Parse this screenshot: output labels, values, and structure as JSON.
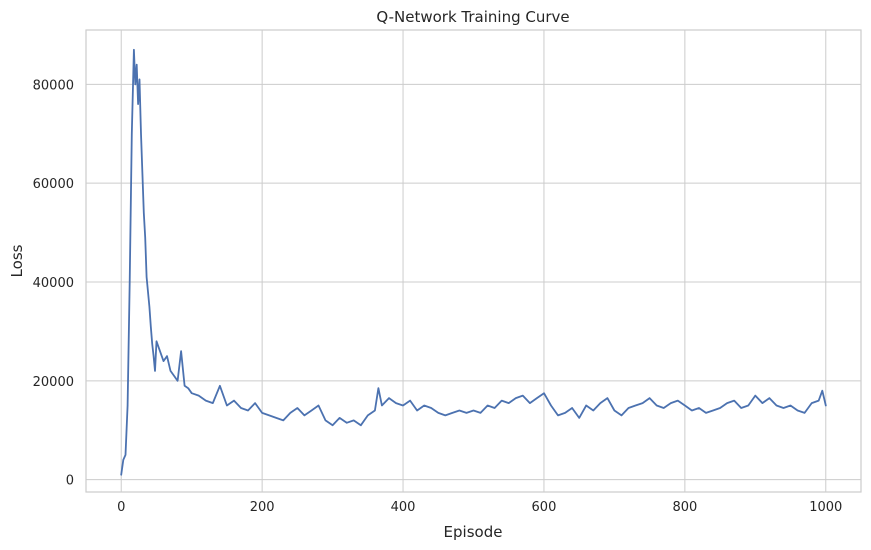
{
  "chart_data": {
    "type": "line",
    "title": "Q-Network Training Curve",
    "xlabel": "Episode",
    "ylabel": "Loss",
    "xlim": [
      -50,
      1050
    ],
    "ylim": [
      -2500,
      91000
    ],
    "xticks": [
      0,
      200,
      400,
      600,
      800,
      1000
    ],
    "yticks": [
      0,
      20000,
      40000,
      60000,
      80000
    ],
    "grid": true,
    "color": "#4c72b0",
    "series": [
      {
        "x": [
          0,
          3,
          6,
          9,
          12,
          15,
          18,
          20,
          22,
          24,
          26,
          28,
          30,
          32,
          34,
          36,
          38,
          40,
          42,
          44,
          46,
          48,
          50,
          55,
          60,
          65,
          70,
          75,
          80,
          85,
          90,
          95,
          100,
          110,
          120,
          130,
          140,
          150,
          160,
          170,
          180,
          190,
          200,
          210,
          220,
          230,
          240,
          250,
          260,
          270,
          280,
          290,
          300,
          310,
          320,
          330,
          340,
          350,
          360,
          365,
          370,
          380,
          390,
          400,
          410,
          420,
          430,
          440,
          450,
          460,
          470,
          480,
          490,
          500,
          510,
          520,
          530,
          540,
          550,
          560,
          570,
          580,
          590,
          600,
          610,
          620,
          630,
          640,
          650,
          660,
          670,
          680,
          690,
          700,
          710,
          720,
          730,
          740,
          750,
          760,
          770,
          780,
          790,
          800,
          810,
          820,
          830,
          840,
          850,
          860,
          870,
          880,
          890,
          900,
          910,
          920,
          930,
          940,
          950,
          960,
          970,
          980,
          990,
          995,
          1000
        ],
        "y": [
          1000,
          4000,
          5000,
          15000,
          40000,
          70000,
          87000,
          80000,
          84000,
          76000,
          81000,
          70000,
          62000,
          54000,
          49000,
          41000,
          38000,
          35000,
          31000,
          27500,
          25000,
          22000,
          28000,
          26000,
          24000,
          25000,
          22000,
          21000,
          20000,
          26000,
          19000,
          18500,
          17500,
          17000,
          16000,
          15500,
          19000,
          15000,
          16000,
          14500,
          14000,
          15500,
          13500,
          13000,
          12500,
          12000,
          13500,
          14500,
          13000,
          14000,
          15000,
          12000,
          11000,
          12500,
          11500,
          12000,
          11000,
          13000,
          14000,
          18500,
          15000,
          16500,
          15500,
          15000,
          16000,
          14000,
          15000,
          14500,
          13500,
          13000,
          13500,
          14000,
          13500,
          14000,
          13500,
          15000,
          14500,
          16000,
          15500,
          16500,
          17000,
          15500,
          16500,
          17500,
          15000,
          13000,
          13500,
          14500,
          12500,
          15000,
          14000,
          15500,
          16500,
          14000,
          13000,
          14500,
          15000,
          15500,
          16500,
          15000,
          14500,
          15500,
          16000,
          15000,
          14000,
          14500,
          13500,
          14000,
          14500,
          15500,
          16000,
          14500,
          15000,
          17000,
          15500,
          16500,
          15000,
          14500,
          15000,
          14000,
          13500,
          15500,
          16000,
          18000,
          15000
        ]
      }
    ]
  }
}
